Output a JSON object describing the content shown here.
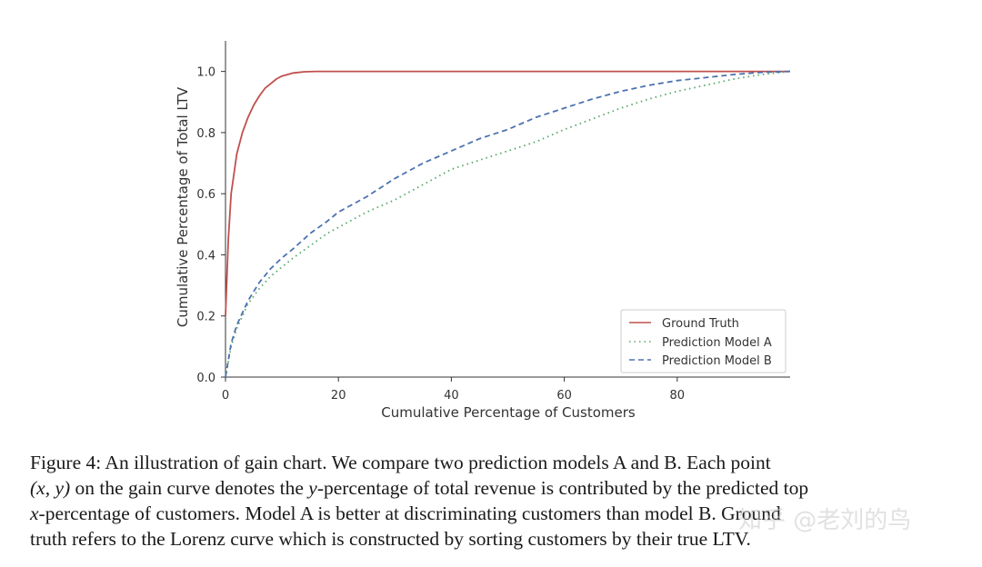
{
  "chart_data": {
    "type": "line",
    "xlabel": "Cumulative Percentage of Customers",
    "ylabel": "Cumulative Percentage of Total LTV",
    "xlim": [
      0,
      100
    ],
    "ylim": [
      0,
      1.1
    ],
    "xticks": [
      0,
      20,
      40,
      60,
      80
    ],
    "yticks": [
      0.0,
      0.2,
      0.4,
      0.6,
      0.8,
      1.0
    ],
    "xtick_labels": [
      "0",
      "20",
      "40",
      "60",
      "80"
    ],
    "ytick_labels": [
      "0.0",
      "0.2",
      "0.4",
      "0.6",
      "0.8",
      "1.0"
    ],
    "grid": false,
    "legend_position": "lower-right",
    "series": [
      {
        "name": "Ground Truth",
        "style": "solid",
        "color": "#c0504d",
        "x": [
          0,
          0.5,
          1,
          2,
          3,
          4,
          5,
          6,
          7,
          8,
          9,
          10,
          12,
          14,
          16,
          20,
          40,
          60,
          80,
          100
        ],
        "y": [
          0.2,
          0.45,
          0.6,
          0.73,
          0.8,
          0.85,
          0.89,
          0.92,
          0.945,
          0.96,
          0.975,
          0.985,
          0.995,
          0.999,
          1.0,
          1.0,
          1.0,
          1.0,
          1.0,
          1.0
        ]
      },
      {
        "name": "Prediction Model A",
        "style": "dotted",
        "color": "#55a868",
        "x": [
          0,
          1,
          2,
          4,
          6,
          8,
          10,
          12,
          15,
          18,
          20,
          25,
          30,
          35,
          40,
          45,
          50,
          55,
          60,
          65,
          70,
          75,
          80,
          85,
          90,
          95,
          100
        ],
        "y": [
          0,
          0.1,
          0.16,
          0.24,
          0.29,
          0.33,
          0.36,
          0.39,
          0.43,
          0.47,
          0.49,
          0.54,
          0.58,
          0.63,
          0.68,
          0.71,
          0.74,
          0.77,
          0.81,
          0.845,
          0.88,
          0.91,
          0.935,
          0.955,
          0.975,
          0.99,
          1.0
        ]
      },
      {
        "name": "Prediction Model B",
        "style": "dashed",
        "color": "#4c72b0",
        "x": [
          0,
          1,
          2,
          4,
          6,
          8,
          10,
          12,
          15,
          18,
          20,
          25,
          30,
          35,
          40,
          45,
          50,
          55,
          60,
          65,
          70,
          75,
          80,
          85,
          90,
          95,
          100
        ],
        "y": [
          0,
          0.11,
          0.17,
          0.25,
          0.31,
          0.355,
          0.39,
          0.42,
          0.47,
          0.51,
          0.54,
          0.59,
          0.65,
          0.7,
          0.74,
          0.78,
          0.81,
          0.85,
          0.88,
          0.91,
          0.935,
          0.955,
          0.97,
          0.98,
          0.99,
          0.997,
          1.0
        ]
      }
    ]
  },
  "caption": {
    "line1": "Figure 4:  An illustration of gain chart.  We compare two prediction models A and B. Each point",
    "line2_math": "(x, y)",
    "line2_rest": " on the gain curve denotes the ",
    "line2_math2": "y",
    "line2_rest2": "-percentage of total revenue is contributed by the predicted top",
    "line3_math": "x",
    "line3_rest": "-percentage of customers.  Model A is better at discriminating customers than model B. Ground",
    "line4": "truth refers to the Lorenz curve which is constructed by sorting customers by their true LTV."
  },
  "watermark": "知乎 @老刘的鸟"
}
